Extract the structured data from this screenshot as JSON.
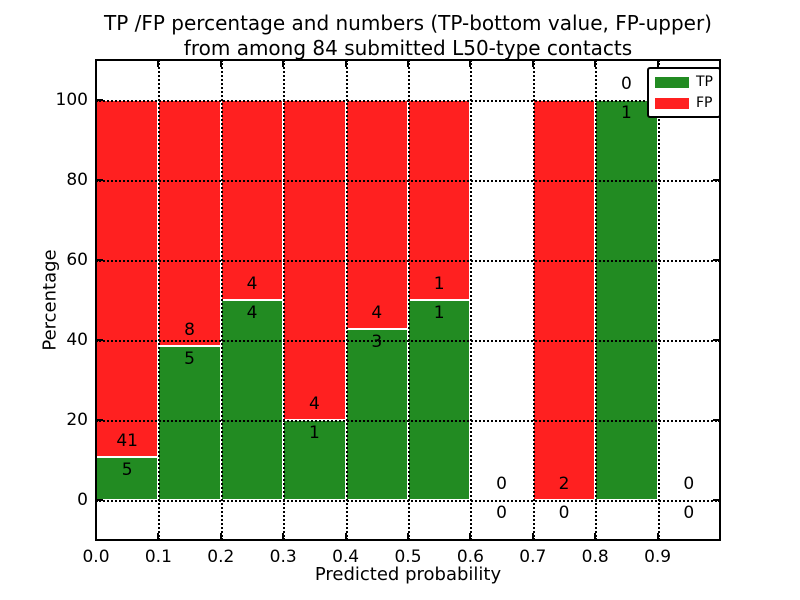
{
  "chart_data": {
    "type": "bar",
    "stacked": true,
    "title_line1": "TP /FP percentage and numbers (TP-bottom value, FP-upper)",
    "title_line2": "from among 84 submitted L50-type contacts",
    "xlabel": "Predicted probability",
    "ylabel": "Percentage",
    "xlim": [
      0.0,
      1.0
    ],
    "ylim": [
      -10,
      110
    ],
    "grid": true,
    "colors": {
      "tp": "#228B22",
      "fp": "#FF2020"
    },
    "xticks": [
      {
        "v": 0.0,
        "label": "0.0"
      },
      {
        "v": 0.1,
        "label": "0.1"
      },
      {
        "v": 0.2,
        "label": "0.2"
      },
      {
        "v": 0.3,
        "label": "0.3"
      },
      {
        "v": 0.4,
        "label": "0.4"
      },
      {
        "v": 0.5,
        "label": "0.5"
      },
      {
        "v": 0.6,
        "label": "0.6"
      },
      {
        "v": 0.7,
        "label": "0.7"
      },
      {
        "v": 0.8,
        "label": "0.8"
      },
      {
        "v": 0.9,
        "label": "0.9"
      }
    ],
    "yticks": [
      {
        "v": 0,
        "label": "0"
      },
      {
        "v": 20,
        "label": "20"
      },
      {
        "v": 40,
        "label": "40"
      },
      {
        "v": 60,
        "label": "60"
      },
      {
        "v": 80,
        "label": "80"
      },
      {
        "v": 100,
        "label": "100"
      }
    ],
    "bins": [
      {
        "x0": 0.0,
        "x1": 0.1,
        "tp": 5,
        "fp": 41
      },
      {
        "x0": 0.1,
        "x1": 0.2,
        "tp": 5,
        "fp": 8
      },
      {
        "x0": 0.2,
        "x1": 0.3,
        "tp": 4,
        "fp": 4
      },
      {
        "x0": 0.3,
        "x1": 0.4,
        "tp": 1,
        "fp": 4
      },
      {
        "x0": 0.4,
        "x1": 0.5,
        "tp": 3,
        "fp": 4
      },
      {
        "x0": 0.5,
        "x1": 0.6,
        "tp": 1,
        "fp": 1
      },
      {
        "x0": 0.6,
        "x1": 0.7,
        "tp": 0,
        "fp": 0
      },
      {
        "x0": 0.7,
        "x1": 0.8,
        "tp": 0,
        "fp": 2
      },
      {
        "x0": 0.8,
        "x1": 0.9,
        "tp": 1,
        "fp": 0
      },
      {
        "x0": 0.9,
        "x1": 1.0,
        "tp": 0,
        "fp": 0
      }
    ],
    "legend": {
      "position": "upper right",
      "entries": [
        {
          "label": "TP",
          "color": "#228B22"
        },
        {
          "label": "FP",
          "color": "#FF2020"
        }
      ]
    }
  }
}
